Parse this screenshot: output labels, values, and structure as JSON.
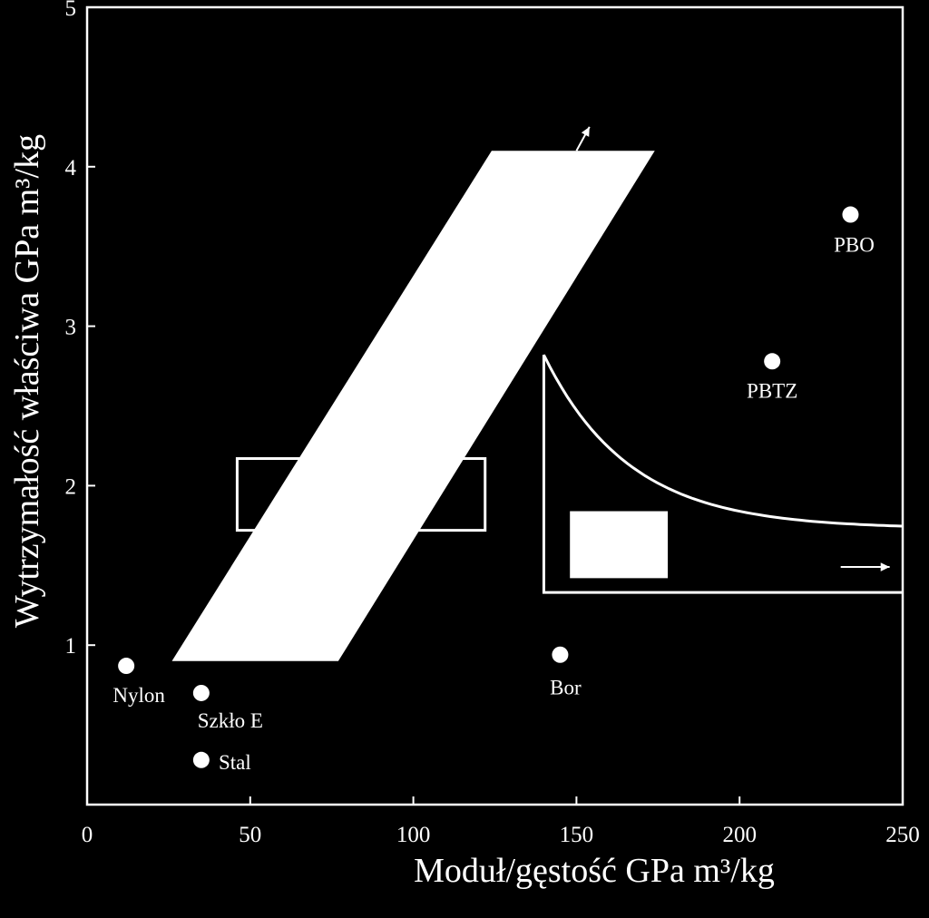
{
  "chart_data": {
    "type": "scatter",
    "title": "",
    "xlabel": "Moduł/gęstość  GPa m³/kg",
    "ylabel": "Wytrzymałość właściwa   GPa m³/kg",
    "xlim": [
      0,
      250
    ],
    "ylim": [
      0,
      5
    ],
    "x_ticks": [
      0,
      50,
      100,
      150,
      200,
      250
    ],
    "y_ticks": [
      1,
      2,
      3,
      4,
      5
    ],
    "grid": false,
    "points": [
      {
        "label": "Nylon",
        "x": 12,
        "y": 0.87
      },
      {
        "label": "Szkło E",
        "x": 35,
        "y": 0.7
      },
      {
        "label": "Stal",
        "x": 35,
        "y": 0.28
      },
      {
        "label": "Bor",
        "x": 145,
        "y": 0.94
      },
      {
        "label": "PBTZ",
        "x": 210,
        "y": 2.78
      },
      {
        "label": "PBO",
        "x": 234,
        "y": 3.7
      }
    ],
    "regions": [
      {
        "shape": "parallelogram",
        "filled": true,
        "vertices": [
          [
            26,
            0.9
          ],
          [
            77,
            0.9
          ],
          [
            174,
            4.1
          ],
          [
            124,
            4.1
          ]
        ]
      },
      {
        "shape": "rectangle",
        "filled": false,
        "x_range": [
          46,
          122
        ],
        "y_range": [
          1.72,
          2.17
        ]
      },
      {
        "shape": "rectangle",
        "filled": true,
        "x_range": [
          148,
          178
        ],
        "y_range": [
          1.42,
          1.84
        ]
      },
      {
        "shape": "curve-region",
        "filled": false,
        "x_start": 140,
        "top_y": 2.82,
        "asymptote_y": 1.73,
        "bottom_y": 1.33
      }
    ],
    "arrows": [
      {
        "from": [
          150,
          4.1
        ],
        "to": [
          154,
          4.25
        ]
      },
      {
        "from": [
          231,
          1.49
        ],
        "to": [
          246,
          1.49
        ]
      }
    ]
  }
}
